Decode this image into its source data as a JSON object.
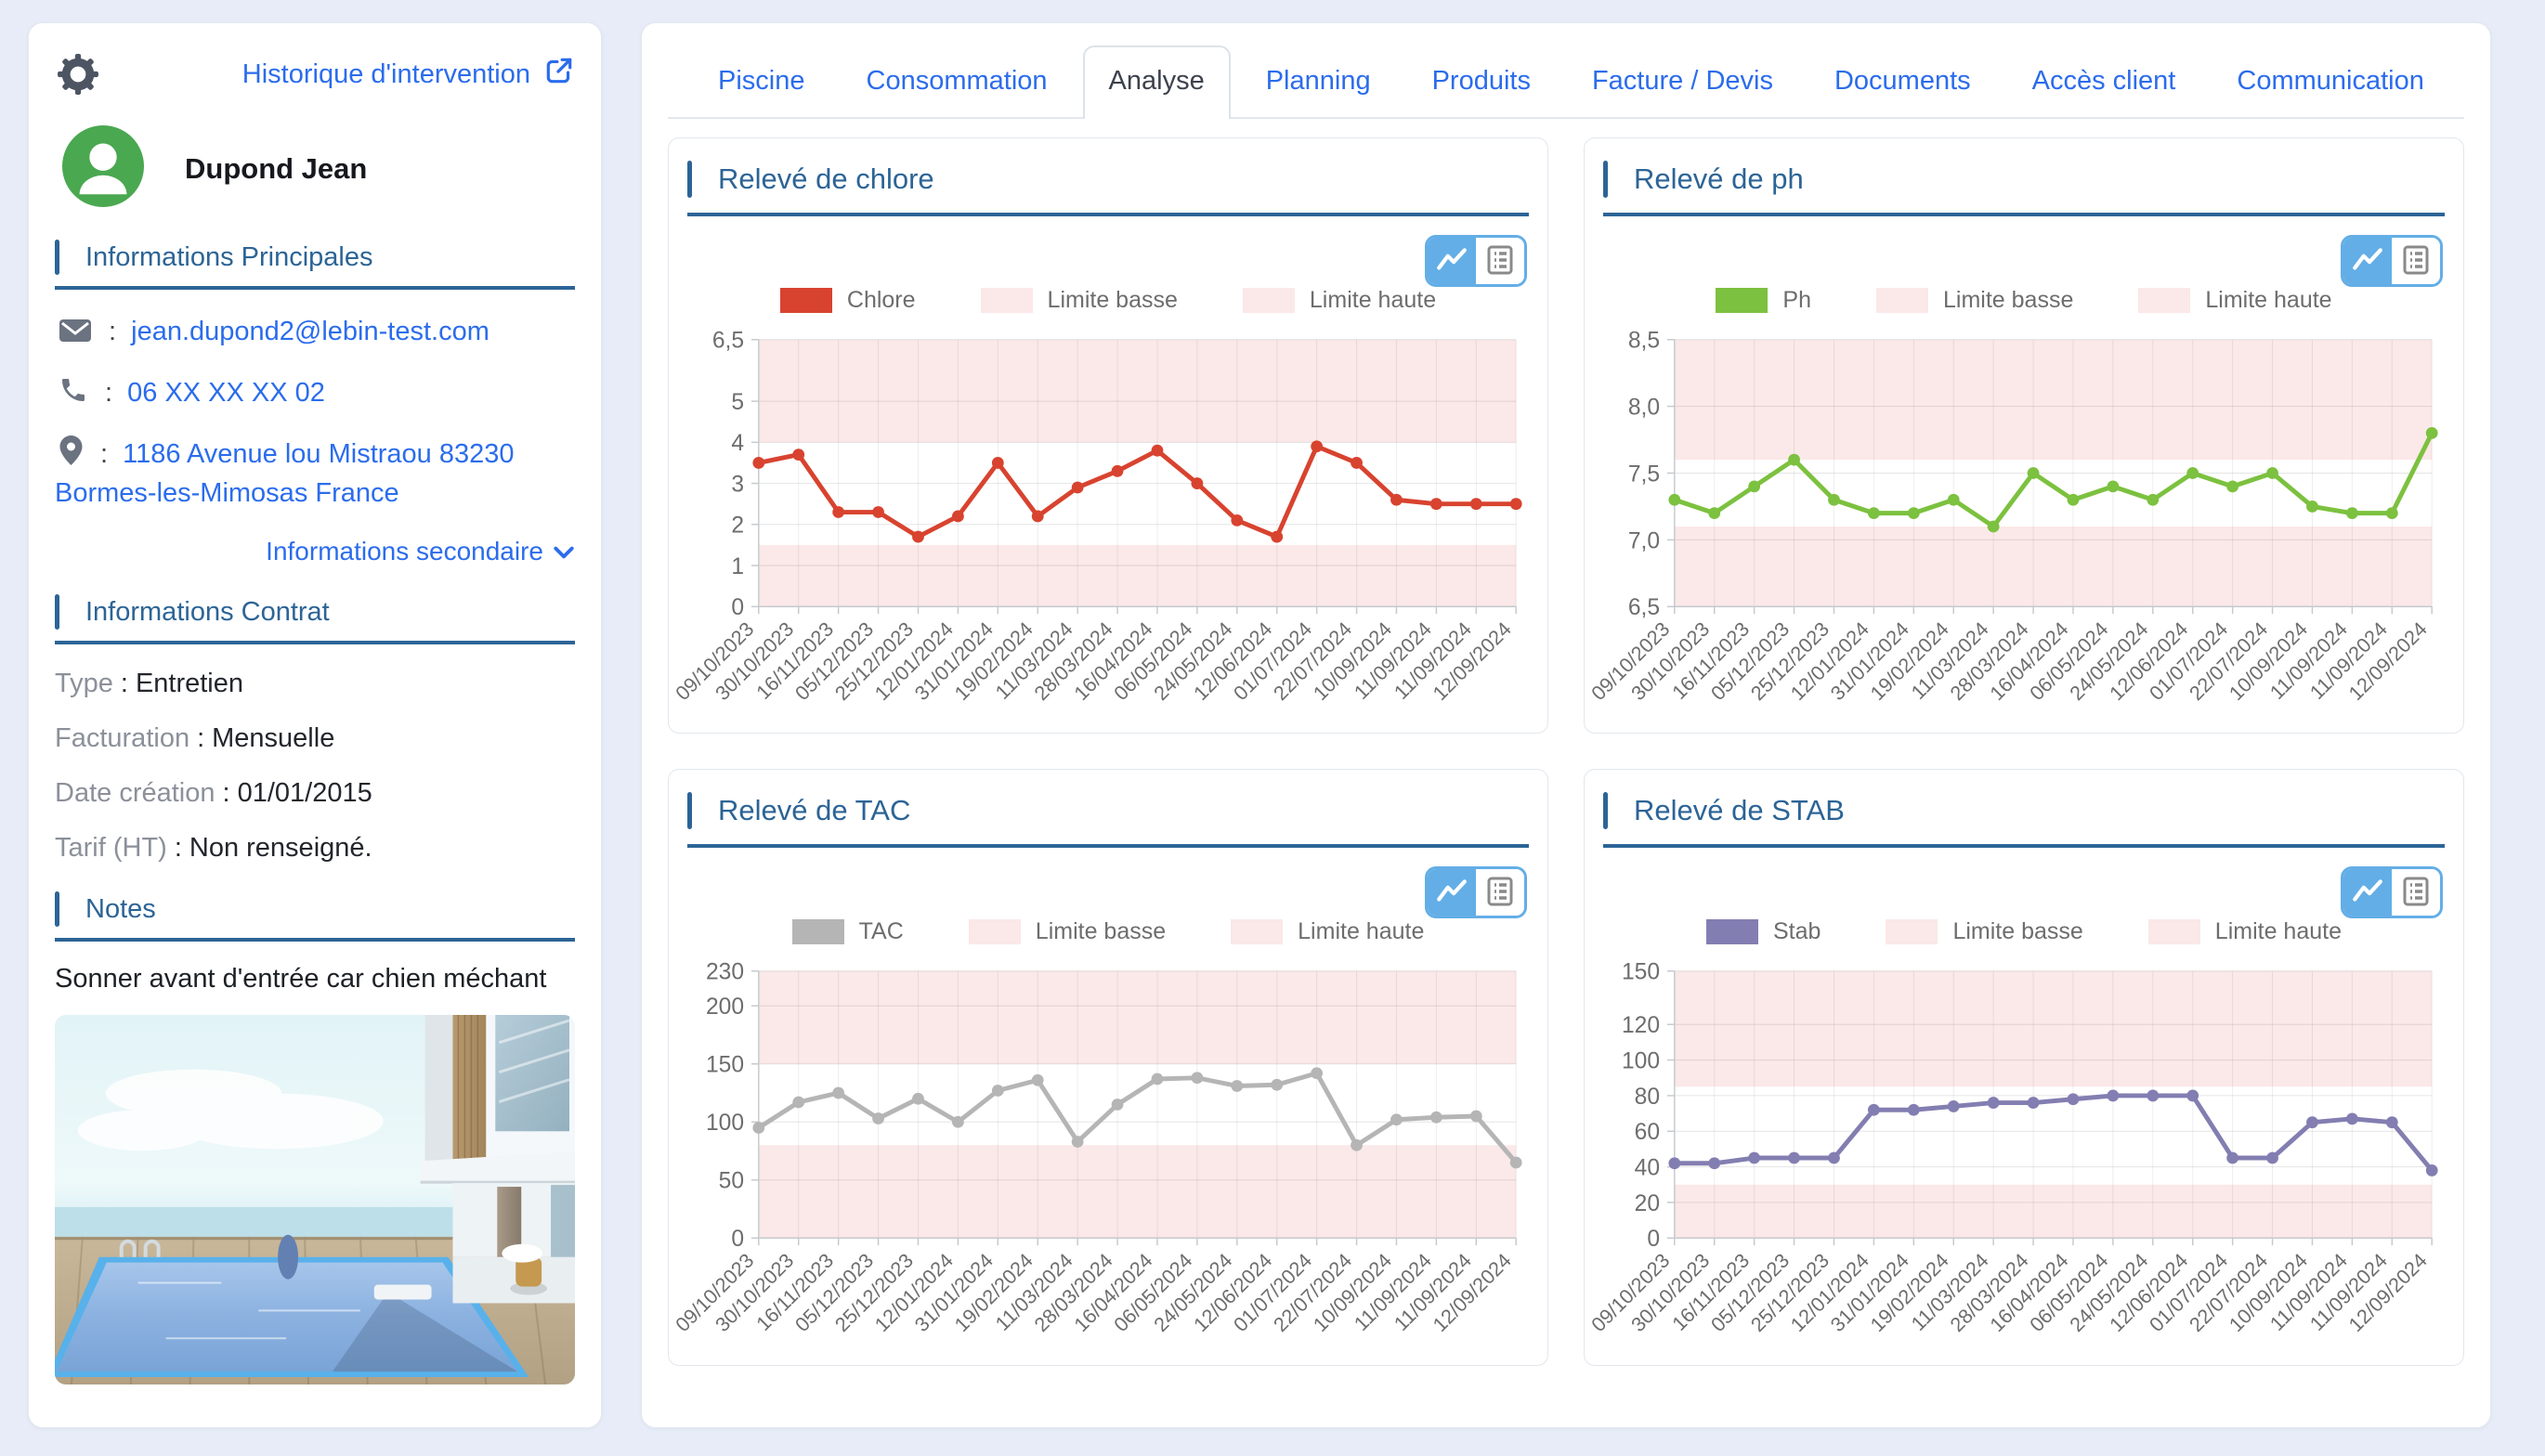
{
  "ui": {
    "accent_blue": "#2b6cec",
    "header_blue": "#2c6496",
    "band_color": "#fbe8e8",
    "toggle_blue": "#63aee6",
    "avatar_green": "#4aa850",
    "icons": {
      "gear-icon": "gear",
      "external-link-icon": "arrow-out-of-box",
      "avatar-icon": "person",
      "mail-icon": "envelope",
      "phone-icon": "handset",
      "location-icon": "map-pin",
      "chevron-down-icon": "chevron-down",
      "line-chart-icon": "zigzag-line",
      "table-view-icon": "list-table"
    }
  },
  "sidebar": {
    "history_link_label": "Historique d'intervention",
    "client_name": "Dupond Jean",
    "separator": ":",
    "sections": {
      "principal": "Informations Principales",
      "secondary_toggle": "Informations secondaire",
      "contract": "Informations Contrat",
      "notes": "Notes"
    },
    "contact": {
      "email": "jean.dupond2@lebin-test.com",
      "phone": "06 XX XX XX 02",
      "address": "1186 Avenue lou Mistraou 83230 Bormes-les-Mimosas France"
    },
    "contract_fields": [
      {
        "label": "Type",
        "value": "Entretien"
      },
      {
        "label": "Facturation",
        "value": "Mensuelle"
      },
      {
        "label": "Date création",
        "value": "01/01/2015"
      },
      {
        "label": "Tarif (HT)",
        "value": "Non renseigné."
      }
    ],
    "note_text": "Sonner avant d'entrée car chien méchant"
  },
  "tabs": [
    {
      "label": "Piscine",
      "active": false
    },
    {
      "label": "Consommation",
      "active": false
    },
    {
      "label": "Analyse",
      "active": true
    },
    {
      "label": "Planning",
      "active": false
    },
    {
      "label": "Produits",
      "active": false
    },
    {
      "label": "Facture / Devis",
      "active": false
    },
    {
      "label": "Documents",
      "active": false
    },
    {
      "label": "Accès client",
      "active": false
    },
    {
      "label": "Communication",
      "active": false
    }
  ],
  "chart_data": [
    {
      "type": "line",
      "title": "Relevé de chlore",
      "legend": [
        "Chlore",
        "Limite basse",
        "Limite haute"
      ],
      "legend_position": "top",
      "grid": true,
      "x": [
        "09/10/2023",
        "30/10/2023",
        "16/11/2023",
        "05/12/2023",
        "25/12/2023",
        "12/01/2024",
        "31/01/2024",
        "19/02/2024",
        "11/03/2024",
        "28/03/2024",
        "16/04/2024",
        "06/05/2024",
        "24/05/2024",
        "12/06/2024",
        "01/07/2024",
        "22/07/2024",
        "10/09/2024",
        "11/09/2024",
        "11/09/2024",
        "12/09/2024"
      ],
      "series": [
        {
          "name": "Chlore",
          "color": "#d8432f",
          "values": [
            3.5,
            3.7,
            2.3,
            2.3,
            1.7,
            2.2,
            3.5,
            2.2,
            2.9,
            3.3,
            3.8,
            3.0,
            2.1,
            1.7,
            3.9,
            3.5,
            2.6,
            2.5,
            2.5,
            2.5
          ]
        }
      ],
      "ylim": [
        0,
        6.5
      ],
      "y_ticks": [
        0,
        1,
        2,
        3,
        4,
        5,
        6.5
      ],
      "y_tick_labels": [
        "0",
        "1",
        "2",
        "3",
        "4",
        "5",
        "6,5"
      ],
      "limit_low_band": [
        0,
        1.5
      ],
      "limit_high_band": [
        4,
        6.5
      ]
    },
    {
      "type": "line",
      "title": "Relevé de ph",
      "legend": [
        "Ph",
        "Limite basse",
        "Limite haute"
      ],
      "legend_position": "top",
      "grid": true,
      "x": [
        "09/10/2023",
        "30/10/2023",
        "16/11/2023",
        "05/12/2023",
        "25/12/2023",
        "12/01/2024",
        "31/01/2024",
        "19/02/2024",
        "11/03/2024",
        "28/03/2024",
        "16/04/2024",
        "06/05/2024",
        "24/05/2024",
        "12/06/2024",
        "01/07/2024",
        "22/07/2024",
        "10/09/2024",
        "11/09/2024",
        "11/09/2024",
        "12/09/2024"
      ],
      "series": [
        {
          "name": "Ph",
          "color": "#7cc13f",
          "values": [
            7.3,
            7.2,
            7.4,
            7.6,
            7.3,
            7.2,
            7.2,
            7.3,
            7.1,
            7.5,
            7.3,
            7.4,
            7.3,
            7.5,
            7.4,
            7.5,
            7.25,
            7.2,
            7.2,
            7.8
          ]
        }
      ],
      "ylim": [
        6.5,
        8.5
      ],
      "y_ticks": [
        6.5,
        7,
        7.5,
        8,
        8.5
      ],
      "y_tick_labels": [
        "6,5",
        "7,0",
        "7,5",
        "8,0",
        "8,5"
      ],
      "limit_low_band": [
        6.5,
        7.1
      ],
      "limit_high_band": [
        7.6,
        8.5
      ]
    },
    {
      "type": "line",
      "title": "Relevé de TAC",
      "legend": [
        "TAC",
        "Limite basse",
        "Limite haute"
      ],
      "legend_position": "top",
      "grid": true,
      "x": [
        "09/10/2023",
        "30/10/2023",
        "16/11/2023",
        "05/12/2023",
        "25/12/2023",
        "12/01/2024",
        "31/01/2024",
        "19/02/2024",
        "11/03/2024",
        "28/03/2024",
        "16/04/2024",
        "06/05/2024",
        "24/05/2024",
        "12/06/2024",
        "01/07/2024",
        "22/07/2024",
        "10/09/2024",
        "11/09/2024",
        "11/09/2024",
        "12/09/2024"
      ],
      "series": [
        {
          "name": "TAC",
          "color": "#b5b5b5",
          "values": [
            95,
            117,
            125,
            103,
            120,
            100,
            127,
            136,
            83,
            115,
            137,
            138,
            131,
            132,
            142,
            80,
            102,
            104,
            105,
            65
          ]
        }
      ],
      "ylim": [
        0,
        230
      ],
      "y_ticks": [
        0,
        50,
        100,
        150,
        200,
        230
      ],
      "y_tick_labels": [
        "0",
        "50",
        "100",
        "150",
        "200",
        "230"
      ],
      "limit_low_band": [
        0,
        80
      ],
      "limit_high_band": [
        150,
        230
      ]
    },
    {
      "type": "line",
      "title": "Relevé de STAB",
      "legend": [
        "Stab",
        "Limite basse",
        "Limite haute"
      ],
      "legend_position": "top",
      "grid": true,
      "x": [
        "09/10/2023",
        "30/10/2023",
        "16/11/2023",
        "05/12/2023",
        "25/12/2023",
        "12/01/2024",
        "31/01/2024",
        "19/02/2024",
        "11/03/2024",
        "28/03/2024",
        "16/04/2024",
        "06/05/2024",
        "24/05/2024",
        "12/06/2024",
        "01/07/2024",
        "22/07/2024",
        "10/09/2024",
        "11/09/2024",
        "11/09/2024",
        "12/09/2024"
      ],
      "series": [
        {
          "name": "Stab",
          "color": "#837eb1",
          "values": [
            42,
            42,
            45,
            45,
            45,
            72,
            72,
            74,
            76,
            76,
            78,
            80,
            80,
            80,
            45,
            45,
            65,
            67,
            65,
            38
          ]
        }
      ],
      "ylim": [
        0,
        150
      ],
      "y_ticks": [
        0,
        20,
        40,
        60,
        80,
        100,
        120,
        150
      ],
      "y_tick_labels": [
        "0",
        "20",
        "40",
        "60",
        "80",
        "100",
        "120",
        "150"
      ],
      "limit_low_band": [
        0,
        30
      ],
      "limit_high_band": [
        85,
        150
      ]
    }
  ]
}
